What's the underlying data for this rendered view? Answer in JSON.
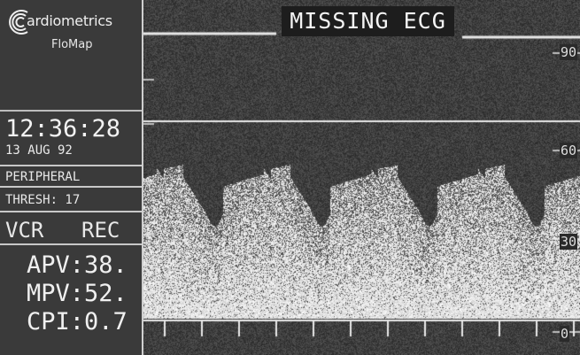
{
  "sidebar": {
    "brand": "ardiometrics",
    "product": "FloMap",
    "time": "12:36:28",
    "date": "13 AUG 92",
    "mode": "PERIPHERAL",
    "thresh": "THRESH: 17",
    "vcr_left": "VCR",
    "vcr_right": "REC",
    "apv": "APV:38.",
    "mpv": "MPV:52.",
    "cpi": "CPI:0.7"
  },
  "display": {
    "banner": "MISSING ECG",
    "scale": [
      "90",
      "60",
      "30",
      "0"
    ]
  },
  "colors": {
    "background": "#2a2a2a",
    "signal": "#e6e6e6"
  },
  "icons": [
    "cardiometrics-logo-icon"
  ]
}
